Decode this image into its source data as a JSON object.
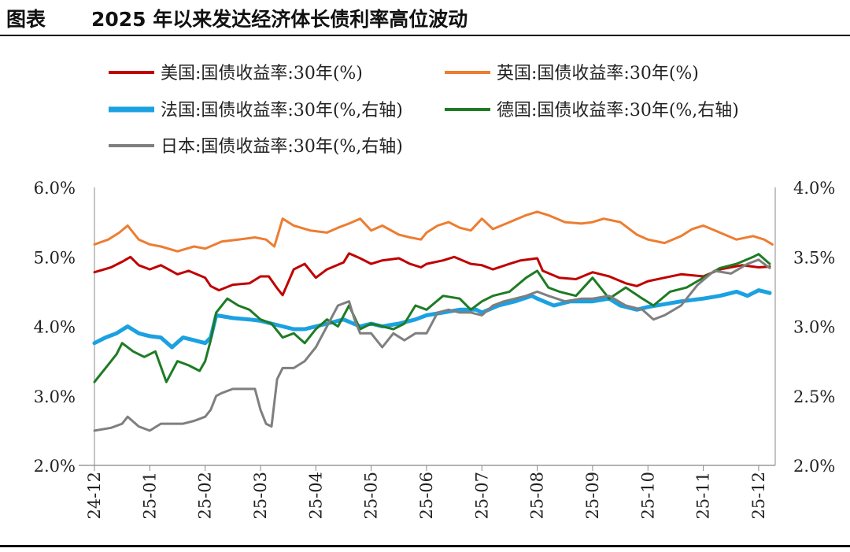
{
  "header": {
    "label": "图表",
    "title": "2025 年以来发达经济体长债利率高位波动"
  },
  "colors": {
    "us": "#C00000",
    "uk": "#ED7D31",
    "fr": "#1BA1E2",
    "de": "#1E7B24",
    "jp": "#7F7F7F"
  },
  "chart_data": {
    "type": "line",
    "title": "2025 年以来发达经济体长债利率高位波动",
    "xlabel": "",
    "ylabel_left": "",
    "ylabel_right": "",
    "x_ticks": [
      "24-12",
      "25-01",
      "25-02",
      "25-03",
      "25-04",
      "25-05",
      "25-06",
      "25-07",
      "25-08",
      "25-09",
      "25-10",
      "25-11",
      "25-12"
    ],
    "x_range": [
      0,
      12.3
    ],
    "y_left": {
      "range": [
        2.0,
        6.0
      ],
      "ticks": [
        "2.0%",
        "3.0%",
        "4.0%",
        "5.0%",
        "6.0%"
      ],
      "tick_values": [
        2,
        3,
        4,
        5,
        6
      ]
    },
    "y_right": {
      "range": [
        2.0,
        4.0
      ],
      "ticks": [
        "2.0%",
        "2.5%",
        "3.0%",
        "3.5%",
        "4.0%"
      ],
      "tick_values": [
        2,
        2.5,
        3,
        3.5,
        4
      ]
    },
    "legend": [
      {
        "key": "us",
        "label": "美国:国债收益率:30年(%)"
      },
      {
        "key": "uk",
        "label": "英国:国债收益率:30年(%)"
      },
      {
        "key": "fr",
        "label": "法国:国债收益率:30年(%,右轴)"
      },
      {
        "key": "de",
        "label": "德国:国债收益率:30年(%,右轴)"
      },
      {
        "key": "jp",
        "label": "日本:国债收益率:30年(%,右轴)"
      }
    ],
    "series": [
      {
        "key": "us",
        "name": "美国:国债收益率:30年(%)",
        "axis": "left",
        "x": [
          0,
          0.3,
          0.5,
          0.65,
          0.8,
          1.0,
          1.2,
          1.5,
          1.7,
          2.0,
          2.1,
          2.25,
          2.5,
          2.8,
          3.0,
          3.15,
          3.3,
          3.4,
          3.6,
          3.8,
          4.0,
          4.2,
          4.5,
          4.6,
          4.8,
          5.0,
          5.2,
          5.5,
          5.7,
          5.9,
          6.0,
          6.3,
          6.5,
          6.8,
          7.0,
          7.2,
          7.5,
          7.7,
          8.0,
          8.1,
          8.4,
          8.7,
          9.0,
          9.3,
          9.6,
          9.8,
          10.0,
          10.3,
          10.6,
          11.0,
          11.3,
          11.7,
          12.0,
          12.2
        ],
        "y": [
          4.78,
          4.85,
          4.93,
          5.0,
          4.88,
          4.82,
          4.88,
          4.75,
          4.8,
          4.7,
          4.58,
          4.52,
          4.6,
          4.62,
          4.72,
          4.72,
          4.55,
          4.45,
          4.82,
          4.9,
          4.7,
          4.82,
          4.92,
          5.05,
          4.98,
          4.9,
          4.95,
          4.98,
          4.9,
          4.85,
          4.9,
          4.95,
          5.0,
          4.9,
          4.88,
          4.82,
          4.9,
          4.95,
          4.98,
          4.8,
          4.7,
          4.68,
          4.78,
          4.72,
          4.62,
          4.58,
          4.65,
          4.7,
          4.75,
          4.72,
          4.82,
          4.88,
          4.85,
          4.86
        ]
      },
      {
        "key": "uk",
        "name": "英国:国债收益率:30年(%)",
        "axis": "left",
        "x": [
          0,
          0.25,
          0.45,
          0.6,
          0.8,
          1.0,
          1.2,
          1.5,
          1.8,
          2.0,
          2.3,
          2.6,
          2.9,
          3.1,
          3.25,
          3.4,
          3.6,
          3.9,
          4.2,
          4.4,
          4.6,
          4.8,
          5.0,
          5.2,
          5.5,
          5.7,
          5.9,
          6.0,
          6.2,
          6.4,
          6.6,
          6.8,
          7.0,
          7.2,
          7.5,
          7.8,
          8.0,
          8.2,
          8.5,
          8.8,
          9.0,
          9.2,
          9.5,
          9.8,
          10.0,
          10.3,
          10.6,
          10.8,
          11.0,
          11.3,
          11.6,
          11.9,
          12.1,
          12.25
        ],
        "y": [
          5.18,
          5.25,
          5.35,
          5.45,
          5.25,
          5.18,
          5.15,
          5.08,
          5.15,
          5.12,
          5.22,
          5.25,
          5.28,
          5.25,
          5.15,
          5.55,
          5.45,
          5.38,
          5.35,
          5.42,
          5.48,
          5.55,
          5.38,
          5.45,
          5.32,
          5.28,
          5.25,
          5.35,
          5.45,
          5.5,
          5.42,
          5.38,
          5.55,
          5.4,
          5.5,
          5.6,
          5.65,
          5.6,
          5.5,
          5.48,
          5.5,
          5.55,
          5.5,
          5.32,
          5.25,
          5.2,
          5.3,
          5.4,
          5.45,
          5.35,
          5.25,
          5.3,
          5.25,
          5.18
        ]
      },
      {
        "key": "fr",
        "name": "法国:国债收益率:30年(%,右轴)",
        "axis": "right",
        "x": [
          0,
          0.2,
          0.4,
          0.6,
          0.8,
          1.0,
          1.2,
          1.4,
          1.6,
          1.8,
          2.0,
          2.1,
          2.2,
          2.5,
          2.8,
          3.0,
          3.2,
          3.4,
          3.6,
          3.8,
          4.0,
          4.2,
          4.5,
          4.8,
          5.0,
          5.2,
          5.5,
          5.8,
          6.0,
          6.3,
          6.6,
          6.9,
          7.0,
          7.3,
          7.6,
          7.9,
          8.0,
          8.3,
          8.6,
          9.0,
          9.3,
          9.5,
          9.8,
          10.0,
          10.3,
          10.6,
          11.0,
          11.3,
          11.6,
          11.8,
          12.0,
          12.2
        ],
        "y": [
          2.88,
          2.92,
          2.95,
          3.0,
          2.95,
          2.93,
          2.92,
          2.85,
          2.92,
          2.9,
          2.88,
          2.92,
          3.08,
          3.06,
          3.05,
          3.04,
          3.02,
          3.0,
          2.98,
          2.98,
          3.0,
          3.02,
          3.05,
          3.0,
          3.02,
          3.0,
          3.02,
          3.05,
          3.08,
          3.1,
          3.12,
          3.12,
          3.1,
          3.15,
          3.18,
          3.22,
          3.2,
          3.15,
          3.18,
          3.18,
          3.2,
          3.15,
          3.12,
          3.14,
          3.16,
          3.18,
          3.2,
          3.22,
          3.25,
          3.22,
          3.26,
          3.24
        ]
      },
      {
        "key": "de",
        "name": "德国:国债收益率:30年(%,右轴)",
        "axis": "right",
        "x": [
          0,
          0.2,
          0.4,
          0.5,
          0.7,
          0.9,
          1.1,
          1.3,
          1.5,
          1.7,
          1.9,
          2.0,
          2.1,
          2.2,
          2.4,
          2.6,
          2.8,
          3.0,
          3.2,
          3.4,
          3.6,
          3.8,
          4.0,
          4.2,
          4.4,
          4.6,
          4.8,
          5.0,
          5.2,
          5.4,
          5.6,
          5.8,
          6.0,
          6.3,
          6.6,
          6.8,
          7.0,
          7.2,
          7.5,
          7.8,
          8.0,
          8.2,
          8.4,
          8.7,
          9.0,
          9.3,
          9.6,
          9.9,
          10.1,
          10.4,
          10.7,
          11.0,
          11.3,
          11.6,
          11.9,
          12.0,
          12.2
        ],
        "y": [
          2.6,
          2.7,
          2.8,
          2.88,
          2.82,
          2.78,
          2.82,
          2.6,
          2.75,
          2.72,
          2.68,
          2.75,
          2.9,
          3.1,
          3.2,
          3.15,
          3.12,
          3.05,
          3.02,
          2.92,
          2.95,
          2.88,
          2.98,
          3.05,
          3.0,
          3.15,
          2.98,
          3.02,
          3.0,
          2.98,
          3.02,
          3.15,
          3.12,
          3.22,
          3.2,
          3.12,
          3.18,
          3.22,
          3.25,
          3.35,
          3.4,
          3.28,
          3.25,
          3.22,
          3.35,
          3.2,
          3.28,
          3.2,
          3.15,
          3.25,
          3.28,
          3.35,
          3.42,
          3.45,
          3.5,
          3.52,
          3.45
        ]
      },
      {
        "key": "jp",
        "name": "日本:国债收益率:30年(%,右轴)",
        "axis": "right",
        "x": [
          0,
          0.3,
          0.5,
          0.6,
          0.8,
          1.0,
          1.2,
          1.4,
          1.6,
          1.8,
          2.0,
          2.1,
          2.2,
          2.3,
          2.5,
          2.7,
          2.9,
          3.0,
          3.1,
          3.2,
          3.3,
          3.4,
          3.6,
          3.8,
          4.0,
          4.2,
          4.4,
          4.6,
          4.7,
          4.8,
          5.0,
          5.2,
          5.4,
          5.6,
          5.8,
          6.0,
          6.2,
          6.4,
          6.6,
          6.8,
          7.0,
          7.2,
          7.4,
          7.6,
          7.8,
          8.0,
          8.2,
          8.5,
          8.8,
          9.0,
          9.3,
          9.6,
          9.9,
          10.1,
          10.3,
          10.6,
          10.9,
          11.2,
          11.5,
          11.8,
          12.0,
          12.2
        ],
        "y": [
          2.25,
          2.27,
          2.3,
          2.35,
          2.28,
          2.25,
          2.3,
          2.3,
          2.3,
          2.32,
          2.35,
          2.4,
          2.5,
          2.52,
          2.55,
          2.55,
          2.55,
          2.4,
          2.3,
          2.28,
          2.62,
          2.7,
          2.7,
          2.75,
          2.85,
          3.0,
          3.15,
          3.18,
          3.05,
          2.95,
          2.95,
          2.85,
          2.95,
          2.9,
          2.95,
          2.95,
          3.1,
          3.12,
          3.1,
          3.1,
          3.08,
          3.15,
          3.18,
          3.2,
          3.22,
          3.25,
          3.22,
          3.18,
          3.2,
          3.2,
          3.22,
          3.15,
          3.12,
          3.05,
          3.08,
          3.15,
          3.3,
          3.4,
          3.38,
          3.45,
          3.48,
          3.42
        ]
      }
    ]
  }
}
